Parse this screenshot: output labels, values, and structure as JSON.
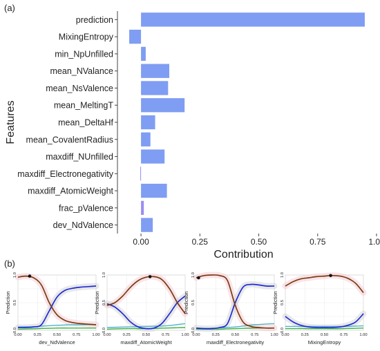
{
  "panel_labels": {
    "a": "(a)",
    "b": "(b)"
  },
  "colors": {
    "bar": "#7f9df2",
    "bar_small": "#9b8ef0",
    "brown": "#7a3a10",
    "blue": "#1f2bd6",
    "teal": "#4fb3c8",
    "green": "#3cb043",
    "purple": "#9a78c8",
    "band": "#d6d6d6",
    "band_pink": "#f4cdd6"
  },
  "chart_data": [
    {
      "type": "bar",
      "orientation": "horizontal",
      "title": "",
      "xlabel": "Contribution",
      "ylabel": "Features",
      "xlim": [
        -0.1,
        1.0
      ],
      "xticks": [
        "0.00",
        "0.25",
        "0.50",
        "0.75",
        "1.00"
      ],
      "xtick_values": [
        0,
        0.25,
        0.5,
        0.75,
        1.0
      ],
      "grid": false,
      "categories": [
        "prediction",
        "MixingEntropy",
        "min_NpUnfilled",
        "mean_NValance",
        "mean_NsValence",
        "mean_MeltingT",
        "mean_DeltaHf",
        "mean_CovalentRadius",
        "maxdiff_NUnfilled",
        "maxdiff_Electronegativity",
        "maxdiff_AtomicWeight",
        "frac_pValence",
        "dev_NdValence"
      ],
      "values": [
        0.95,
        -0.05,
        0.02,
        0.12,
        0.115,
        0.185,
        0.06,
        0.04,
        0.1,
        -0.003,
        0.11,
        0.012,
        0.05
      ]
    },
    {
      "type": "line",
      "panels": [
        {
          "xlabel": "dev_NdValence",
          "ylabel": "Prediction",
          "xticks": [
            "0.00",
            "0.25",
            "0.50",
            "0.75",
            "1.00"
          ],
          "yticks": [
            "0.0",
            "0.5",
            "1.0"
          ],
          "marker": [
            0.15,
            0.98
          ],
          "series": [
            {
              "color": "brown",
              "x": [
                0,
                0.1,
                0.2,
                0.3,
                0.4,
                0.5,
                0.6,
                0.7,
                0.8,
                0.9,
                1.0
              ],
              "y": [
                0.96,
                0.98,
                0.95,
                0.82,
                0.5,
                0.28,
                0.18,
                0.14,
                0.12,
                0.11,
                0.1
              ]
            },
            {
              "color": "blue",
              "x": [
                0,
                0.1,
                0.2,
                0.3,
                0.4,
                0.5,
                0.6,
                0.7,
                0.8,
                0.9,
                1.0
              ],
              "y": [
                0.05,
                0.05,
                0.06,
                0.1,
                0.35,
                0.6,
                0.72,
                0.76,
                0.78,
                0.79,
                0.8
              ]
            },
            {
              "color": "teal",
              "x": [
                0,
                0.25,
                0.5,
                0.75,
                1.0
              ],
              "y": [
                0.06,
                0.07,
                0.09,
                0.1,
                0.1
              ]
            },
            {
              "color": "green",
              "x": [
                0,
                0.25,
                0.5,
                0.75,
                1.0
              ],
              "y": [
                0.02,
                0.03,
                0.04,
                0.04,
                0.04
              ]
            }
          ]
        },
        {
          "xlabel": "maxdiff_AtomicWeight",
          "ylabel": "Prediction",
          "xticks": [
            "0.00",
            "0.25",
            "0.50",
            "0.75",
            "1.00"
          ],
          "yticks": [
            "0.0",
            "0.5",
            "1.0"
          ],
          "marker": [
            0.55,
            0.97
          ],
          "series": [
            {
              "color": "brown",
              "x": [
                0,
                0.1,
                0.2,
                0.3,
                0.4,
                0.5,
                0.6,
                0.7,
                0.8,
                0.9,
                1.0
              ],
              "y": [
                0.45,
                0.5,
                0.62,
                0.78,
                0.9,
                0.96,
                0.97,
                0.92,
                0.75,
                0.5,
                0.3
              ]
            },
            {
              "color": "blue",
              "x": [
                0,
                0.1,
                0.2,
                0.3,
                0.4,
                0.5,
                0.6,
                0.7,
                0.8,
                0.9,
                1.0
              ],
              "y": [
                0.48,
                0.42,
                0.3,
                0.15,
                0.06,
                0.03,
                0.04,
                0.12,
                0.3,
                0.5,
                0.62
              ]
            },
            {
              "color": "teal",
              "x": [
                0,
                0.25,
                0.5,
                0.75,
                1.0
              ],
              "y": [
                0.05,
                0.06,
                0.07,
                0.08,
                0.12
              ]
            },
            {
              "color": "green",
              "x": [
                0,
                0.25,
                0.5,
                0.75,
                1.0
              ],
              "y": [
                0.02,
                0.03,
                0.03,
                0.04,
                0.05
              ]
            }
          ]
        },
        {
          "xlabel": "maxdiff_Electronegativity",
          "ylabel": "Prediction",
          "xticks": [
            "0.00",
            "0.25",
            "0.50",
            "0.75",
            "1.00"
          ],
          "yticks": [
            "0.0",
            "0.5",
            "1.0"
          ],
          "marker": [
            0.03,
            0.95
          ],
          "series": [
            {
              "color": "brown",
              "x": [
                0,
                0.1,
                0.2,
                0.3,
                0.4,
                0.5,
                0.6,
                0.7,
                0.8,
                0.9,
                1.0
              ],
              "y": [
                0.95,
                0.99,
                1.0,
                0.99,
                0.9,
                0.45,
                0.15,
                0.07,
                0.05,
                0.04,
                0.04
              ]
            },
            {
              "color": "blue",
              "x": [
                0,
                0.1,
                0.2,
                0.3,
                0.4,
                0.5,
                0.6,
                0.7,
                0.8,
                0.9,
                1.0
              ],
              "y": [
                0.04,
                0.03,
                0.03,
                0.05,
                0.12,
                0.5,
                0.78,
                0.83,
                0.82,
                0.8,
                0.8
              ]
            },
            {
              "color": "teal",
              "x": [
                0,
                0.25,
                0.5,
                0.75,
                1.0
              ],
              "y": [
                0.03,
                0.04,
                0.06,
                0.1,
                0.12
              ]
            },
            {
              "color": "green",
              "x": [
                0,
                0.25,
                0.5,
                0.75,
                1.0
              ],
              "y": [
                0.02,
                0.02,
                0.03,
                0.04,
                0.04
              ]
            }
          ]
        },
        {
          "xlabel": "MixingEntropy",
          "ylabel": "Prediction",
          "xticks": [
            "0.00",
            "0.25",
            "0.50",
            "0.75",
            "1.00"
          ],
          "yticks": [
            "0.0",
            "0.5",
            "1.0"
          ],
          "marker": [
            0.58,
            0.99
          ],
          "series": [
            {
              "color": "brown",
              "x": [
                0,
                0.1,
                0.2,
                0.3,
                0.4,
                0.5,
                0.6,
                0.7,
                0.8,
                0.9,
                1.0
              ],
              "y": [
                0.8,
                0.88,
                0.93,
                0.95,
                0.97,
                0.98,
                0.99,
                0.98,
                0.94,
                0.85,
                0.68
              ]
            },
            {
              "color": "blue",
              "x": [
                0,
                0.1,
                0.2,
                0.3,
                0.4,
                0.5,
                0.6,
                0.7,
                0.8,
                0.9,
                1.0
              ],
              "y": [
                0.25,
                0.15,
                0.09,
                0.06,
                0.05,
                0.05,
                0.05,
                0.06,
                0.09,
                0.15,
                0.3
              ]
            },
            {
              "color": "teal",
              "x": [
                0,
                0.25,
                0.5,
                0.75,
                1.0
              ],
              "y": [
                0.07,
                0.07,
                0.07,
                0.07,
                0.08
              ]
            },
            {
              "color": "green",
              "x": [
                0,
                0.25,
                0.5,
                0.75,
                1.0
              ],
              "y": [
                0.03,
                0.03,
                0.03,
                0.03,
                0.04
              ]
            }
          ]
        }
      ]
    }
  ]
}
